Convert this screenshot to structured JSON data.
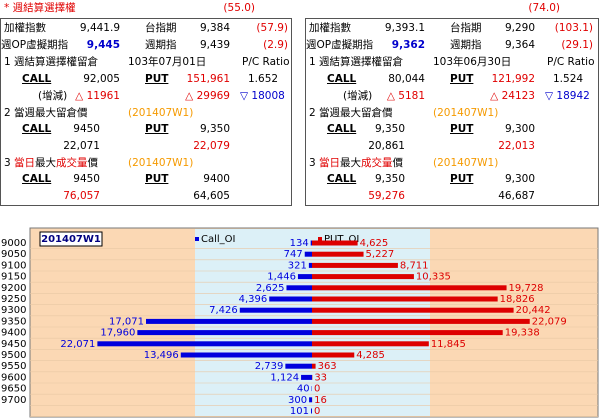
{
  "header": {
    "title": "* 週結算選擇權"
  },
  "panels": [
    {
      "header_value": "(55.0)",
      "index_label": "加權指數",
      "index_value": "9,441.9",
      "fut_label": "台指期",
      "fut_value": "9,384",
      "fut_diff": "(57.9)",
      "vop_label": "週OP虛擬期指",
      "vop_value": "9,445",
      "wk_label": "週期指",
      "wk_value": "9,439",
      "wk_diff": "(2.9)",
      "s1_title": "1 週結算選擇權留倉",
      "s1_date": "103年07月01日",
      "pc_label": "P/C Ratio",
      "call_label": "CALL",
      "call_oi": "92,005",
      "put_label": "PUT",
      "put_oi": "151,961",
      "pc_ratio": "1.652",
      "chg_label": "(增減)",
      "call_chg": "△ 11961",
      "put_chg": "△ 29969",
      "pc_chg": "▽ 18008",
      "s2_title": "2 當週最大留倉價",
      "s2_week": "(201407W1)",
      "s2_call_label": "CALL",
      "s2_call_strike": "9450",
      "s2_put_label": "PUT",
      "s2_put_strike": "9,350",
      "s2_call_oi": "22,071",
      "s2_put_oi": "22,079",
      "s3_title": [
        "3 ",
        "當日",
        "最大",
        "成交量",
        "價"
      ],
      "s3_week": "(201407W1)",
      "s3_call_label": "CALL",
      "s3_call_strike": "9450",
      "s3_put_label": "PUT",
      "s3_put_strike": "9400",
      "s3_call_vol": "76,057",
      "s3_put_vol": "64,605"
    },
    {
      "header_value": "(74.0)",
      "index_label": "加權指數",
      "index_value": "9,393.1",
      "fut_label": "台指期",
      "fut_value": "9,290",
      "fut_diff": "(103.1)",
      "vop_label": "週OP虛擬期指",
      "vop_value": "9,362",
      "wk_label": "週期指",
      "wk_value": "9,364",
      "wk_diff": "(29.1)",
      "s1_title": "1 週結算選擇權留倉",
      "s1_date": "103年06月30日",
      "pc_label": "P/C Ratio",
      "call_label": "CALL",
      "call_oi": "80,044",
      "put_label": "PUT",
      "put_oi": "121,992",
      "pc_ratio": "1.524",
      "chg_label": "(增減)",
      "call_chg": "△ 5181",
      "put_chg": "△ 24123",
      "pc_chg": "▽ 18942",
      "s2_title": "2 當週最大留倉價",
      "s2_week": "(201407W1)",
      "s2_call_label": "CALL",
      "s2_call_strike": "9,350",
      "s2_put_label": "PUT",
      "s2_put_strike": "9,300",
      "s2_call_oi": "20,861",
      "s2_put_oi": "22,013",
      "s3_title": [
        "3 ",
        "當日",
        "最大",
        "成交量",
        "價"
      ],
      "s3_week": "(201407W1)",
      "s3_call_label": "CALL",
      "s3_call_strike": "9,350",
      "s3_put_label": "PUT",
      "s3_put_strike": "9,300",
      "s3_call_vol": "59,276",
      "s3_put_vol": "46,687"
    }
  ],
  "chart_data": {
    "type": "butterfly-bar",
    "title": "201407W1",
    "categories": [
      "9000",
      "9050",
      "9100",
      "9150",
      "9200",
      "9250",
      "9300",
      "9350",
      "9400",
      "9450",
      "9500",
      "9550",
      "9600",
      "9650",
      "9700",
      null
    ],
    "xlim": [
      0,
      29000
    ],
    "series": [
      {
        "name": "Call_OI",
        "color": "#0000dd",
        "direction": "left",
        "values": [
          134,
          747,
          321,
          1446,
          2625,
          4396,
          7426,
          17071,
          17960,
          22071,
          13496,
          2739,
          1124,
          40,
          300,
          101
        ],
        "value_labels": [
          "134",
          "747",
          "321",
          "1,446",
          "2,625",
          "4,396",
          "7,426",
          "17,071",
          "17,960",
          "22,071",
          "13,496",
          "2,739",
          "1,124",
          "40",
          "300",
          "101"
        ]
      },
      {
        "name": "PUT_OI",
        "color": "#dd0000",
        "direction": "right",
        "values": [
          4625,
          5227,
          8711,
          10335,
          19728,
          18826,
          20442,
          22079,
          19338,
          11845,
          4285,
          363,
          33,
          0,
          16,
          0
        ],
        "value_labels": [
          "4,625",
          "5,227",
          "8,711",
          "10,335",
          "19,728",
          "18,826",
          "20,442",
          "22,079",
          "19,338",
          "11,845",
          "4,285",
          "363",
          "33",
          "0",
          "16",
          "0"
        ]
      }
    ]
  }
}
